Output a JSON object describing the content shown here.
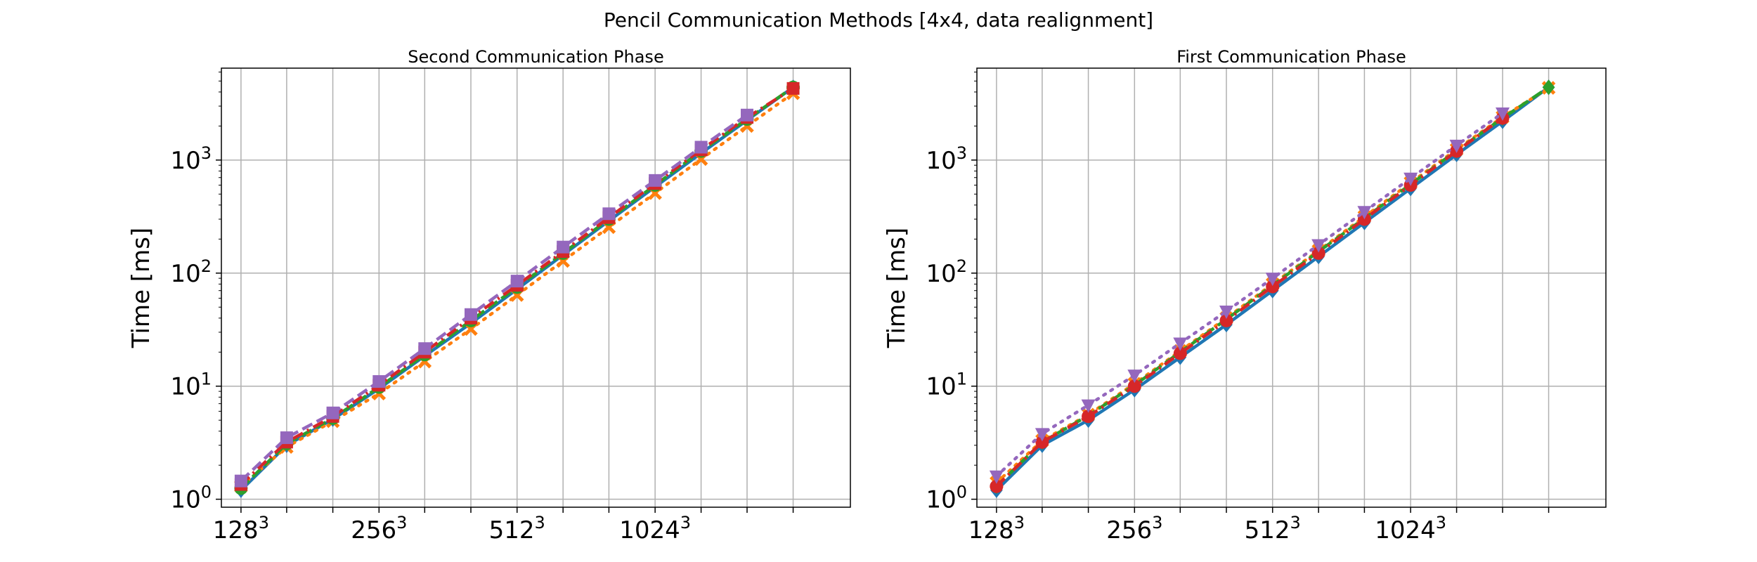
{
  "figure": {
    "suptitle": "Pencil Communication Methods [4x4, data realignment]"
  },
  "chart_data": [
    {
      "type": "line",
      "title": "Second Communication Phase",
      "xlabel": "",
      "ylabel": "Time [ms]",
      "yscale": "log",
      "ylim": [
        0.85,
        6500
      ],
      "grid": true,
      "x": [
        128,
        161,
        203,
        256,
        322,
        406,
        512,
        645,
        812,
        1024,
        1290,
        1625,
        2048
      ],
      "xlim": [
        116,
        2730
      ],
      "xticks": [
        128,
        161,
        203,
        256,
        322,
        406,
        512,
        645,
        812,
        1024,
        1290,
        1625,
        2048
      ],
      "xtick_labels": [
        "128",
        "",
        "",
        "256",
        "",
        "",
        "512",
        "",
        "",
        "1024",
        "",
        "",
        ""
      ],
      "xtick_exponent": "3",
      "yticks": [
        1,
        10,
        100,
        1000
      ],
      "ytick_labels": [
        "10",
        "10",
        "10",
        "10"
      ],
      "ytick_exponents": [
        "0",
        "1",
        "2",
        "3"
      ],
      "series": [
        {
          "color": "#1f77b4",
          "dash": "solid",
          "marker": "diamond",
          "values": [
            1.2,
            3.0,
            5.1,
            9.5,
            18.5,
            36,
            72,
            145,
            290,
            580,
            1150,
            2250,
            4400
          ]
        },
        {
          "color": "#ff7f0e",
          "dash": "dotted",
          "marker": "x",
          "values": [
            1.3,
            2.9,
            4.9,
            8.6,
            16.5,
            32,
            64,
            128,
            255,
            510,
            1020,
            2000,
            3900
          ]
        },
        {
          "color": "#2ca02c",
          "dash": "dashed",
          "marker": "circle",
          "values": [
            1.25,
            3.1,
            5.2,
            9.8,
            19,
            38,
            75,
            150,
            300,
            600,
            1200,
            2300,
            4400
          ]
        },
        {
          "color": "#d62728",
          "dash": "dashdot",
          "marker": "square",
          "values": [
            1.35,
            3.2,
            5.4,
            10.2,
            20,
            40,
            78,
            155,
            310,
            620,
            1230,
            2380,
            4300
          ]
        },
        {
          "color": "#9467bd",
          "dash": "dashed",
          "marker": "square",
          "values": [
            1.45,
            3.5,
            5.8,
            11,
            21.5,
            43,
            85,
            170,
            335,
            660,
            1300,
            2500,
            null
          ]
        }
      ]
    },
    {
      "type": "line",
      "title": "First Communication Phase",
      "xlabel": "",
      "ylabel": "Time [ms]",
      "yscale": "log",
      "ylim": [
        0.85,
        6500
      ],
      "grid": true,
      "x": [
        128,
        161,
        203,
        256,
        322,
        406,
        512,
        645,
        812,
        1024,
        1290,
        1625,
        2048
      ],
      "xlim": [
        116,
        2730
      ],
      "xticks": [
        128,
        161,
        203,
        256,
        322,
        406,
        512,
        645,
        812,
        1024,
        1290,
        1625,
        2048
      ],
      "xtick_labels": [
        "128",
        "",
        "",
        "256",
        "",
        "",
        "512",
        "",
        "",
        "1024",
        "",
        "",
        ""
      ],
      "xtick_exponent": "3",
      "yticks": [
        1,
        10,
        100,
        1000
      ],
      "ytick_labels": [
        "10",
        "10",
        "10",
        "10"
      ],
      "ytick_exponents": [
        "0",
        "1",
        "2",
        "3"
      ],
      "series": [
        {
          "color": "#1f77b4",
          "dash": "solid",
          "marker": "diamond",
          "values": [
            1.2,
            3.0,
            5.0,
            9.3,
            18,
            35,
            70,
            140,
            280,
            560,
            1120,
            2200,
            4400
          ]
        },
        {
          "color": "#ff7f0e",
          "dash": "dotted",
          "marker": "x",
          "values": [
            1.4,
            3.3,
            5.6,
            10.5,
            20.5,
            40,
            80,
            158,
            315,
            630,
            1240,
            2400,
            4350
          ]
        },
        {
          "color": "#2ca02c",
          "dash": "dashed",
          "marker": "diamond",
          "values": [
            1.3,
            3.2,
            5.5,
            10.2,
            20,
            39,
            78,
            155,
            305,
            610,
            1210,
            2350,
            4400
          ]
        },
        {
          "color": "#d62728",
          "dash": "dashdot",
          "marker": "circle",
          "values": [
            1.3,
            3.2,
            5.4,
            10.0,
            19.5,
            38,
            76,
            150,
            300,
            600,
            1200,
            2350,
            null
          ]
        },
        {
          "color": "#9467bd",
          "dash": "dotted",
          "marker": "triangle-down",
          "values": [
            1.6,
            3.8,
            6.8,
            12.5,
            24,
            46,
            90,
            178,
            350,
            690,
            1350,
            2600,
            null
          ]
        }
      ]
    }
  ]
}
